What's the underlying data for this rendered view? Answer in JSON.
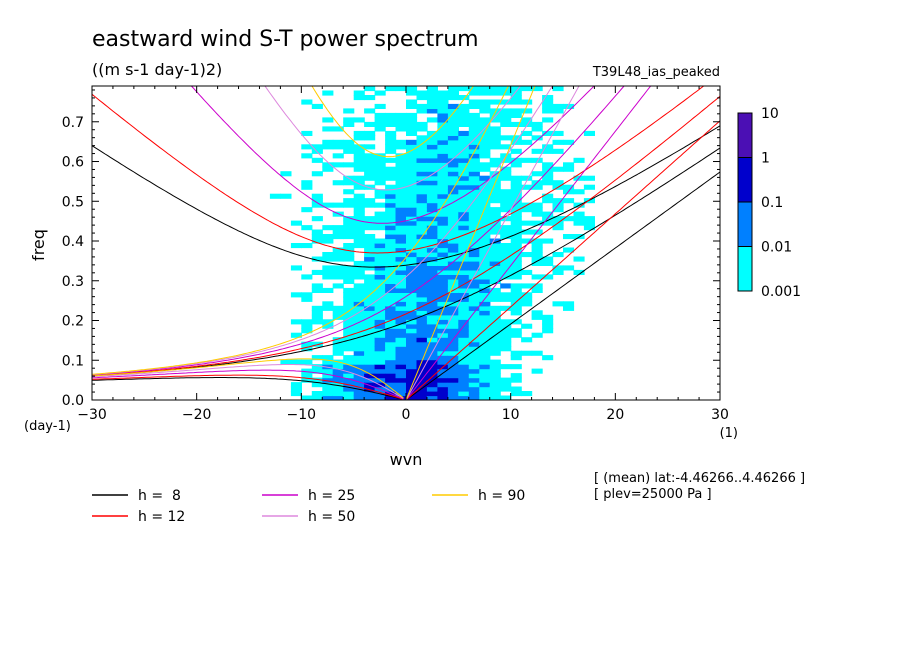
{
  "chart_data": {
    "type": "heatmap",
    "title": "eastward wind S-T power spectrum",
    "subtitle": "((m s-1 day-1)2)",
    "run_label": "T39L48_ias_peaked",
    "xlabel": "wvn",
    "ylabel": "freq",
    "xunit": "(1)",
    "yunit": "(day-1)",
    "xlim": [
      -30,
      30
    ],
    "ylim": [
      0,
      0.79
    ],
    "xticks": [
      -30,
      -20,
      -10,
      0,
      10,
      20,
      30
    ],
    "yticks": [
      0.0,
      0.1,
      0.2,
      0.3,
      0.4,
      0.5,
      0.6,
      0.7
    ],
    "color_scale": {
      "type": "log",
      "levels": [
        "0.001",
        "0.01",
        "0.1",
        "1",
        "10"
      ],
      "colors": [
        "#00ffff",
        "#0080ff",
        "#0000cc",
        "#4b0fb4"
      ]
    },
    "dispersion_curves": [
      {
        "name": "h =  8",
        "h": 8,
        "color": "#000000"
      },
      {
        "name": "h = 12",
        "h": 12,
        "color": "#ff0000"
      },
      {
        "name": "h = 25",
        "h": 25,
        "color": "#cc00cc"
      },
      {
        "name": "h = 50",
        "h": 50,
        "color": "#dd88dd"
      },
      {
        "name": "h = 90",
        "h": 90,
        "color": "#ffcc00"
      }
    ],
    "annotations": [
      "[ (mean) lat:-4.46266..4.46266 ]",
      "[ plev=25000 Pa ]"
    ]
  }
}
